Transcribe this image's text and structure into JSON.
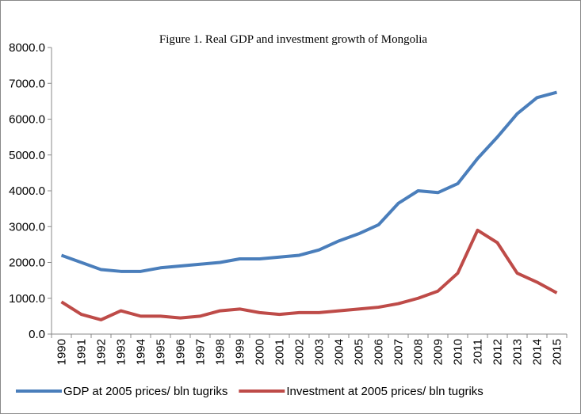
{
  "chart_data": {
    "type": "line",
    "title": "Figure 1. Real GDP and investment growth of Mongolia",
    "categories": [
      "1990",
      "1991",
      "1992",
      "1993",
      "1994",
      "1995",
      "1996",
      "1997",
      "1998",
      "1999",
      "2000",
      "2001",
      "2002",
      "2003",
      "2004",
      "2005",
      "2006",
      "2007",
      "2008",
      "2009",
      "2010",
      "2011",
      "2012",
      "2013",
      "2014",
      "2015"
    ],
    "series": [
      {
        "name": "GDP at 2005 prices/ bln tugriks",
        "color": "#4a7ebb",
        "values": [
          2200,
          2000,
          1800,
          1750,
          1750,
          1850,
          1900,
          1950,
          2000,
          2100,
          2100,
          2150,
          2200,
          2350,
          2600,
          2800,
          3050,
          3650,
          4000,
          3950,
          4200,
          4900,
          5500,
          6150,
          6600,
          6750
        ]
      },
      {
        "name": "Investment at 2005 prices/ bln tugriks",
        "color": "#be4b48",
        "values": [
          900,
          550,
          400,
          650,
          500,
          500,
          450,
          500,
          650,
          700,
          600,
          550,
          600,
          600,
          650,
          700,
          750,
          850,
          1000,
          1200,
          1700,
          2900,
          2550,
          1700,
          1450,
          1150
        ]
      }
    ],
    "ylim": [
      0,
      8000
    ],
    "yticks": [
      {
        "value": 0,
        "label": "0.0"
      },
      {
        "value": 1000,
        "label": "1000.0"
      },
      {
        "value": 2000,
        "label": "2000.0"
      },
      {
        "value": 3000,
        "label": "3000.0"
      },
      {
        "value": 4000,
        "label": "4000.0"
      },
      {
        "value": 5000,
        "label": "5000.0"
      },
      {
        "value": 6000,
        "label": "6000.0"
      },
      {
        "value": 7000,
        "label": "7000.0"
      },
      {
        "value": 8000,
        "label": "8000.0"
      }
    ],
    "legend": "bottom"
  }
}
